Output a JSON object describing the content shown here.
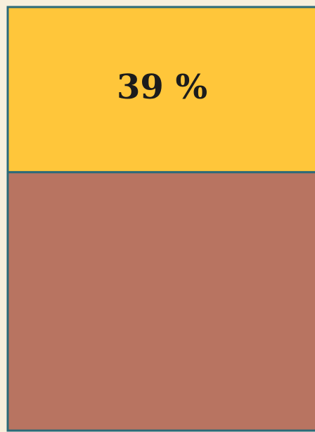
{
  "chart_data": {
    "type": "stacked_block",
    "categories": [
      null,
      null
    ],
    "values": [
      39,
      61
    ],
    "value_labels": [
      "39 %",
      null
    ],
    "colors": [
      "#ffc63a",
      "#b87461"
    ],
    "border_color": "#2b6a78"
  }
}
